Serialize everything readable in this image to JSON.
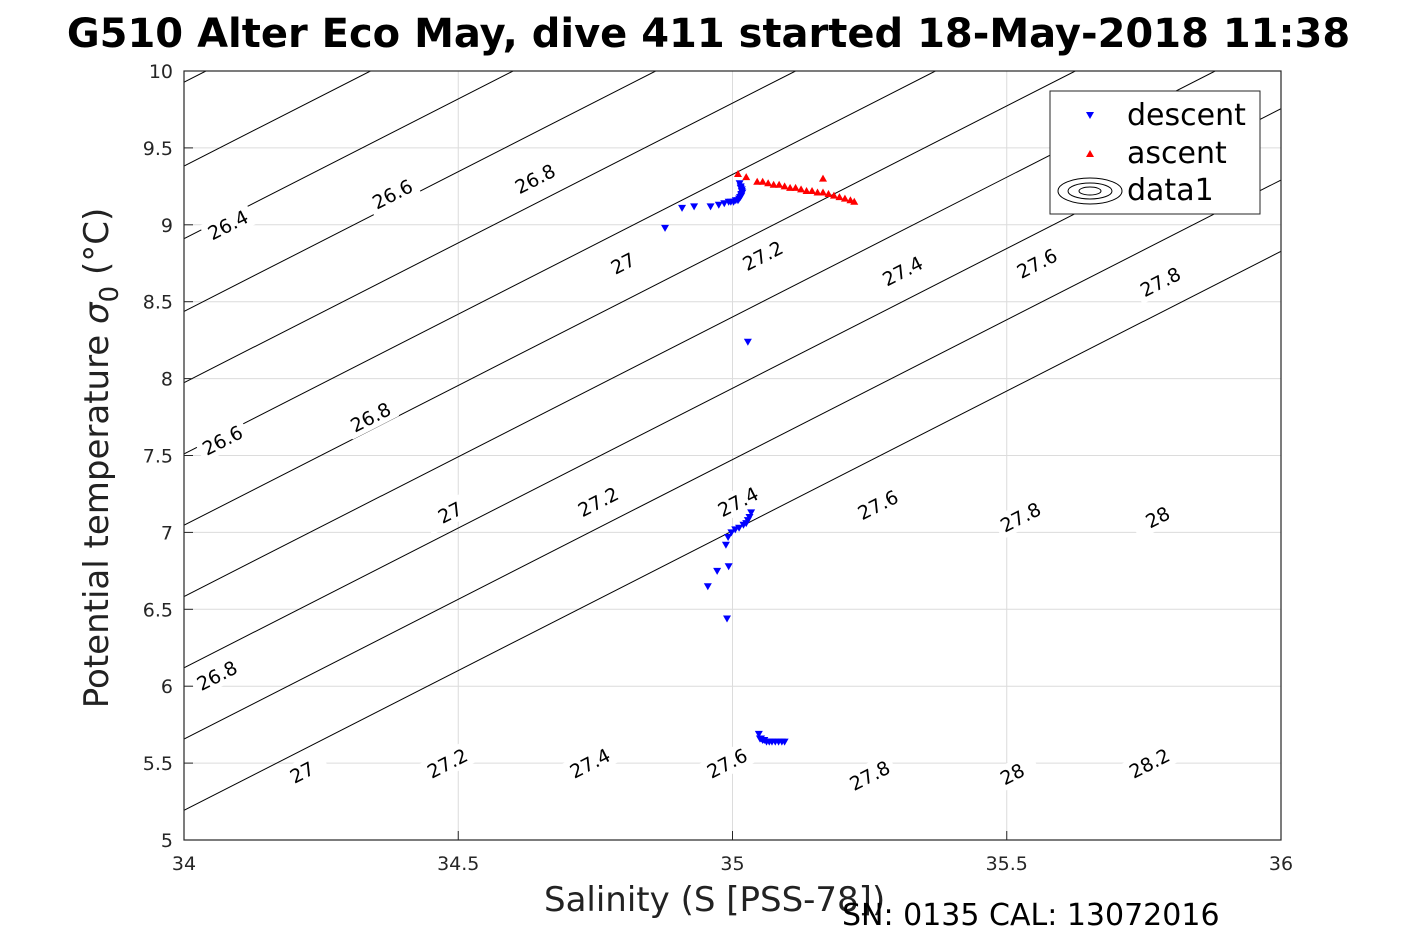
{
  "title": "G510 Alter Eco May, dive 411 started 18-May-2018 11:38",
  "footer": "SN: 0135  CAL: 13072016",
  "chart_data": {
    "type": "scatter",
    "xlabel": "Salinity (S [PSS-78])",
    "ylabel_prefix": "Potential temperature",
    "ylabel_symbol": "σ",
    "ylabel_subscript": "0",
    "ylabel_suffix": "(°C)",
    "xlim": [
      34,
      36
    ],
    "ylim": [
      5,
      10
    ],
    "xticks": [
      34,
      34.5,
      35,
      35.5,
      36
    ],
    "xtick_labels": [
      "34",
      "34.5",
      "35",
      "35.5",
      "36"
    ],
    "yticks": [
      5,
      5.5,
      6,
      6.5,
      7,
      7.5,
      8,
      8.5,
      9,
      9.5,
      10
    ],
    "ytick_labels": [
      "5",
      "5.5",
      "6",
      "6.5",
      "7",
      "7.5",
      "8",
      "8.5",
      "9",
      "9.5",
      "10"
    ],
    "grid": true,
    "legend_placement": "top-right",
    "colors": {
      "descent": "#0000ff",
      "ascent": "#ff0000",
      "contour": "#000000",
      "grid": "#dcdcdc"
    },
    "contours": {
      "name": "data1",
      "slope_x_per_degC": 0.105,
      "levels": [
        {
          "label": "26.4",
          "s_at_10": 34.04
        },
        {
          "label": "26.6",
          "s_at_10": 34.34
        },
        {
          "label": "26.8",
          "s_at_10": 34.6
        },
        {
          "label": "27",
          "s_at_10": 34.86
        },
        {
          "label": "27.2",
          "s_at_10": 35.115
        },
        {
          "label": "27.4",
          "s_at_10": 35.37
        },
        {
          "label": "27.6",
          "s_at_10": 35.625
        },
        {
          "label": "27.8",
          "s_at_10": 35.88
        }
      ],
      "label_points": [
        {
          "label": "26.4",
          "s": 34.08,
          "t": 9.0
        },
        {
          "label": "26.6",
          "s": 34.38,
          "t": 9.2
        },
        {
          "label": "26.8",
          "s": 34.64,
          "t": 9.3
        },
        {
          "label": "27",
          "s": 34.8,
          "t": 8.75
        },
        {
          "label": "27.2",
          "s": 35.055,
          "t": 8.8
        },
        {
          "label": "27.4",
          "s": 35.31,
          "t": 8.7
        },
        {
          "label": "27.6",
          "s": 35.555,
          "t": 8.75
        },
        {
          "label": "27.8",
          "s": 35.78,
          "t": 8.63
        },
        {
          "label": "26.6",
          "s": 34.07,
          "t": 7.6
        },
        {
          "label": "26.8",
          "s": 34.34,
          "t": 7.75
        },
        {
          "label": "27",
          "s": 34.485,
          "t": 7.13
        },
        {
          "label": "27.2",
          "s": 34.755,
          "t": 7.2
        },
        {
          "label": "27.4",
          "s": 35.01,
          "t": 7.2
        },
        {
          "label": "27.6",
          "s": 35.265,
          "t": 7.18
        },
        {
          "label": "27.8",
          "s": 35.525,
          "t": 7.1
        },
        {
          "label": "28",
          "s": 35.775,
          "t": 7.1
        },
        {
          "label": "26.8",
          "s": 34.06,
          "t": 6.07
        },
        {
          "label": "27",
          "s": 34.215,
          "t": 5.44
        },
        {
          "label": "27.2",
          "s": 34.48,
          "t": 5.5
        },
        {
          "label": "27.4",
          "s": 34.74,
          "t": 5.5
        },
        {
          "label": "27.6",
          "s": 34.99,
          "t": 5.5
        },
        {
          "label": "27.8",
          "s": 35.25,
          "t": 5.42
        },
        {
          "label": "28",
          "s": 35.51,
          "t": 5.43
        },
        {
          "label": "28.2",
          "s": 35.76,
          "t": 5.5
        }
      ],
      "lines_extra": [
        {
          "s_at_10": 36.135
        },
        {
          "s_at_10": 36.39
        },
        {
          "s_at_10": 36.645
        }
      ]
    },
    "series": [
      {
        "name": "descent",
        "marker": "triangle-down",
        "x": [
          34.877,
          34.908,
          34.93,
          34.96,
          34.975,
          34.985,
          34.993,
          34.997,
          35.002,
          35.006,
          35.01,
          35.012,
          35.014,
          35.016,
          35.018,
          35.017,
          35.015,
          35.013,
          35.014,
          35.016,
          35.017,
          35.015,
          35.028,
          35.034,
          35.031,
          35.028,
          35.025,
          35.02,
          35.012,
          35.005,
          34.998,
          34.992,
          34.988,
          34.993,
          34.972,
          34.955,
          34.99,
          35.048,
          35.052,
          35.058,
          35.062,
          35.067,
          35.072,
          35.078,
          35.084,
          35.09,
          35.095,
          35.05,
          35.055
        ],
        "y": [
          8.98,
          9.11,
          9.12,
          9.12,
          9.13,
          9.14,
          9.15,
          9.15,
          9.15,
          9.16,
          9.16,
          9.17,
          9.18,
          9.19,
          9.21,
          9.23,
          9.25,
          9.27,
          9.18,
          9.2,
          9.22,
          9.24,
          8.24,
          7.13,
          7.1,
          7.08,
          7.06,
          7.05,
          7.03,
          7.02,
          7.0,
          6.97,
          6.92,
          6.78,
          6.75,
          6.65,
          6.44,
          5.69,
          5.66,
          5.65,
          5.64,
          5.64,
          5.64,
          5.64,
          5.64,
          5.64,
          5.64,
          5.66,
          5.65
        ]
      },
      {
        "name": "ascent",
        "marker": "triangle-up",
        "x": [
          35.01,
          35.025,
          35.045,
          35.055,
          35.065,
          35.075,
          35.085,
          35.095,
          35.105,
          35.115,
          35.125,
          35.135,
          35.145,
          35.155,
          35.165,
          35.175,
          35.185,
          35.195,
          35.205,
          35.215,
          35.222,
          35.165
        ],
        "y": [
          9.33,
          9.31,
          9.28,
          9.28,
          9.27,
          9.26,
          9.26,
          9.25,
          9.24,
          9.24,
          9.23,
          9.22,
          9.22,
          9.21,
          9.21,
          9.2,
          9.19,
          9.18,
          9.17,
          9.16,
          9.15,
          9.3
        ]
      }
    ]
  }
}
